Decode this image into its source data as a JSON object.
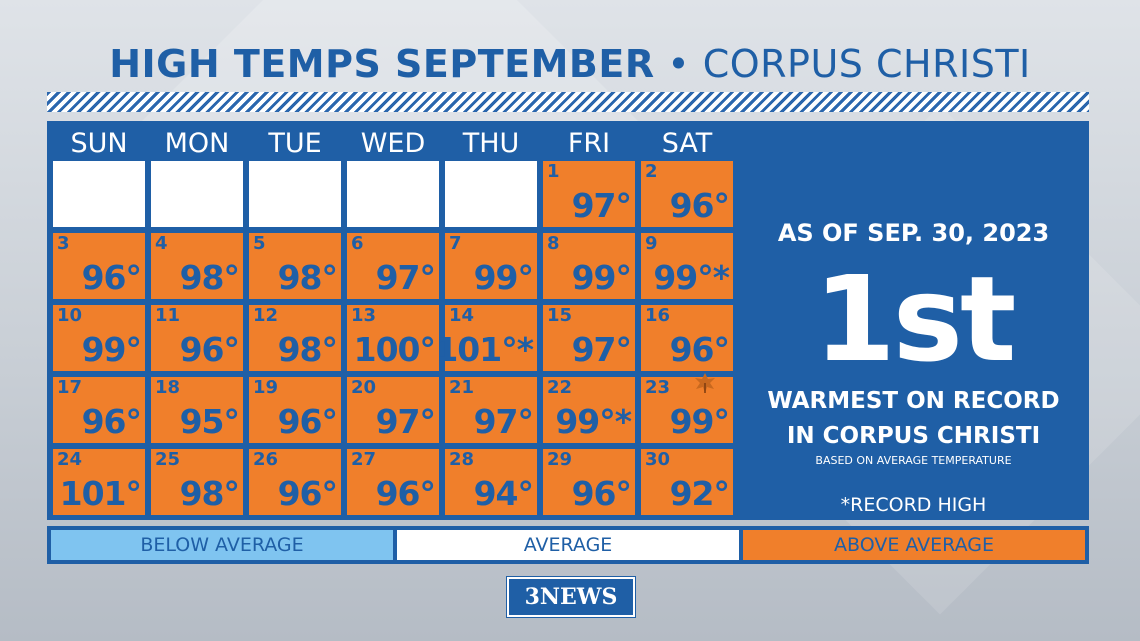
{
  "title": {
    "bold": "HIGH TEMPS SEPTEMBER",
    "separator": "•",
    "light": "CORPUS CHRISTI"
  },
  "days": [
    "SUN",
    "MON",
    "TUE",
    "WED",
    "THU",
    "FRI",
    "SAT"
  ],
  "weeks": [
    [
      {
        "d": "",
        "t": ""
      },
      {
        "d": "",
        "t": ""
      },
      {
        "d": "",
        "t": ""
      },
      {
        "d": "",
        "t": ""
      },
      {
        "d": "",
        "t": ""
      },
      {
        "d": "1",
        "t": "97°"
      },
      {
        "d": "2",
        "t": "96°"
      }
    ],
    [
      {
        "d": "3",
        "t": "96°"
      },
      {
        "d": "4",
        "t": "98°"
      },
      {
        "d": "5",
        "t": "98°"
      },
      {
        "d": "6",
        "t": "97°"
      },
      {
        "d": "7",
        "t": "99°"
      },
      {
        "d": "8",
        "t": "99°"
      },
      {
        "d": "9",
        "t": "99°*"
      }
    ],
    [
      {
        "d": "10",
        "t": "99°"
      },
      {
        "d": "11",
        "t": "96°"
      },
      {
        "d": "12",
        "t": "98°"
      },
      {
        "d": "13",
        "t": "100°"
      },
      {
        "d": "14",
        "t": "101°*"
      },
      {
        "d": "15",
        "t": "97°"
      },
      {
        "d": "16",
        "t": "96°"
      }
    ],
    [
      {
        "d": "17",
        "t": "96°"
      },
      {
        "d": "18",
        "t": "95°"
      },
      {
        "d": "19",
        "t": "96°"
      },
      {
        "d": "20",
        "t": "97°"
      },
      {
        "d": "21",
        "t": "97°"
      },
      {
        "d": "22",
        "t": "99°*"
      },
      {
        "d": "23",
        "t": "99°"
      }
    ],
    [
      {
        "d": "24",
        "t": "101°"
      },
      {
        "d": "25",
        "t": "98°"
      },
      {
        "d": "26",
        "t": "96°"
      },
      {
        "d": "27",
        "t": "96°"
      },
      {
        "d": "28",
        "t": "94°"
      },
      {
        "d": "29",
        "t": "96°"
      },
      {
        "d": "30",
        "t": "92°"
      }
    ]
  ],
  "side": {
    "as_of": "AS OF SEP. 30, 2023",
    "rank": "1st",
    "line1": "WARMEST ON RECORD",
    "line2": "IN CORPUS CHRISTI",
    "basis": "BASED ON AVERAGE TEMPERATURE",
    "record_note": "*RECORD HIGH"
  },
  "legend": [
    {
      "label": "BELOW AVERAGE",
      "color": "#7fc4f0"
    },
    {
      "label": "AVERAGE",
      "color": "#ffffff"
    },
    {
      "label": "ABOVE AVERAGE",
      "color": "#f07f2b"
    }
  ],
  "logo": "3NEWS",
  "colors": {
    "brand_blue": "#1f5fa6",
    "above_average": "#f07f2b",
    "below_average": "#7fc4f0",
    "average": "#ffffff"
  }
}
